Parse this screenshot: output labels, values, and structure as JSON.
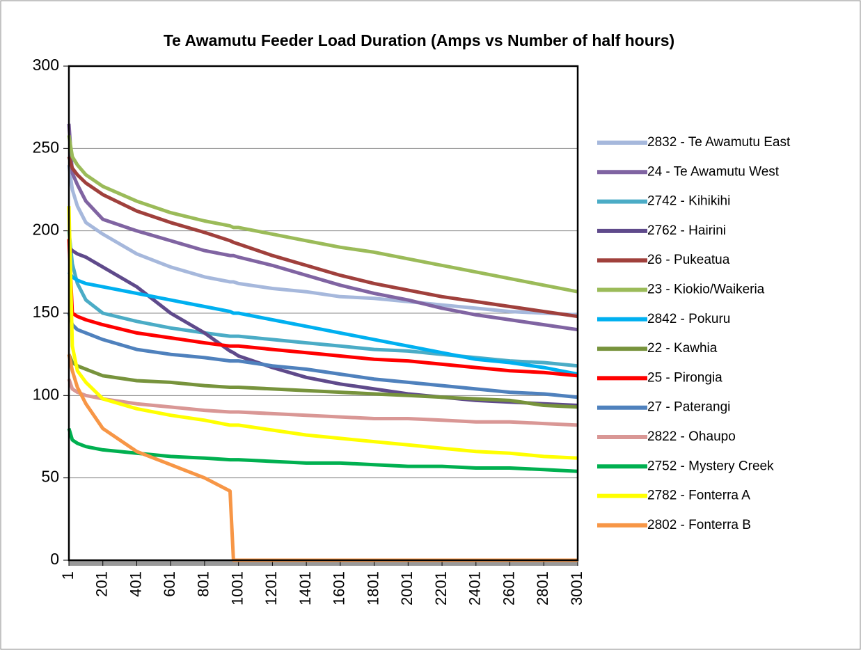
{
  "chart_data": {
    "type": "line",
    "title": "Te Awamutu  Feeder Load Duration (Amps  vs Number of half hours)",
    "x": [
      1,
      21,
      51,
      101,
      201,
      401,
      601,
      801,
      951,
      971,
      1001,
      1201,
      1401,
      1601,
      1801,
      2001,
      2201,
      2401,
      2601,
      2801,
      3001
    ],
    "xlim": [
      1,
      3001
    ],
    "xticks": [
      1,
      201,
      401,
      601,
      801,
      1001,
      1201,
      1401,
      1601,
      1801,
      2001,
      2201,
      2401,
      2601,
      2801,
      3001
    ],
    "ylim": [
      0,
      300
    ],
    "yticks": [
      0,
      50,
      100,
      150,
      200,
      250,
      300
    ],
    "grid": true,
    "legend": "right",
    "series": [
      {
        "name": "2832 - Te Awamutu East",
        "color": "#a6b8dc",
        "values": [
          240,
          225,
          215,
          205,
          198,
          186,
          178,
          172,
          169,
          169,
          168,
          165,
          163,
          160,
          159,
          157,
          155,
          153,
          151,
          150,
          149
        ]
      },
      {
        "name": "24 - Te Awamutu West",
        "color": "#8064a2",
        "values": [
          265,
          235,
          228,
          218,
          207,
          200,
          194,
          188,
          185,
          185,
          184,
          179,
          173,
          167,
          162,
          158,
          153,
          149,
          146,
          143,
          140
        ]
      },
      {
        "name": "2742  - Kihikihi",
        "color": "#4bacc6",
        "values": [
          200,
          180,
          168,
          158,
          150,
          145,
          141,
          138,
          136,
          136,
          136,
          134,
          132,
          130,
          128,
          127,
          125,
          123,
          121,
          120,
          118
        ]
      },
      {
        "name": "2762 - Hairini",
        "color": "#5f4a8b",
        "values": [
          190,
          188,
          186,
          184,
          178,
          166,
          150,
          138,
          127,
          126,
          124,
          117,
          111,
          107,
          104,
          101,
          99,
          97,
          96,
          95,
          94
        ]
      },
      {
        "name": "26 - Pukeatua",
        "color": "#a0403c",
        "values": [
          245,
          238,
          234,
          229,
          222,
          212,
          205,
          199,
          194,
          193,
          192,
          185,
          179,
          173,
          168,
          164,
          160,
          157,
          154,
          151,
          148
        ]
      },
      {
        "name": "23 - Kiokio/Waikeria",
        "color": "#9bbb59",
        "values": [
          258,
          245,
          240,
          234,
          227,
          218,
          211,
          206,
          203,
          202,
          202,
          198,
          194,
          190,
          187,
          183,
          179,
          175,
          171,
          167,
          163
        ]
      },
      {
        "name": "2842  - Pokuru",
        "color": "#00b0f0",
        "values": [
          175,
          172,
          170,
          168,
          166,
          162,
          158,
          154,
          151,
          150,
          150,
          146,
          142,
          138,
          134,
          130,
          126,
          122,
          120,
          117,
          113
        ]
      },
      {
        "name": "22 - Kawhia",
        "color": "#77933c",
        "values": [
          125,
          120,
          118,
          116,
          112,
          109,
          108,
          106,
          105,
          105,
          105,
          104,
          103,
          102,
          101,
          100,
          99,
          98,
          97,
          94,
          93
        ]
      },
      {
        "name": "25 - Pirongia",
        "color": "#ff0000",
        "values": [
          195,
          150,
          148,
          146,
          143,
          138,
          135,
          132,
          130,
          130,
          130,
          128,
          126,
          124,
          122,
          121,
          119,
          117,
          115,
          114,
          112
        ]
      },
      {
        "name": "27 - Paterangi",
        "color": "#4f81bd",
        "values": [
          150,
          143,
          140,
          138,
          134,
          128,
          125,
          123,
          121,
          121,
          121,
          118,
          116,
          113,
          110,
          108,
          106,
          104,
          102,
          101,
          99
        ]
      },
      {
        "name": "2822 - Ohaupo",
        "color": "#d99795",
        "values": [
          110,
          104,
          102,
          100,
          98,
          95,
          93,
          91,
          90,
          90,
          90,
          89,
          88,
          87,
          86,
          86,
          85,
          84,
          84,
          83,
          82
        ]
      },
      {
        "name": "2752 - Mystery Creek",
        "color": "#00b050",
        "values": [
          80,
          73,
          71,
          69,
          67,
          65,
          63,
          62,
          61,
          61,
          61,
          60,
          59,
          59,
          58,
          57,
          57,
          56,
          56,
          55,
          54
        ]
      },
      {
        "name": "2782 - Fonterra A",
        "color": "#ffff00",
        "values": [
          215,
          130,
          115,
          108,
          98,
          92,
          88,
          85,
          82,
          82,
          82,
          79,
          76,
          74,
          72,
          70,
          68,
          66,
          65,
          63,
          62
        ]
      },
      {
        "name": "2802 - Fonterra B",
        "color": "#f79646",
        "values": [
          125,
          115,
          105,
          95,
          80,
          66,
          58,
          50,
          42,
          0,
          0,
          0,
          0,
          0,
          0,
          0,
          0,
          0,
          0,
          0,
          0
        ]
      }
    ]
  }
}
